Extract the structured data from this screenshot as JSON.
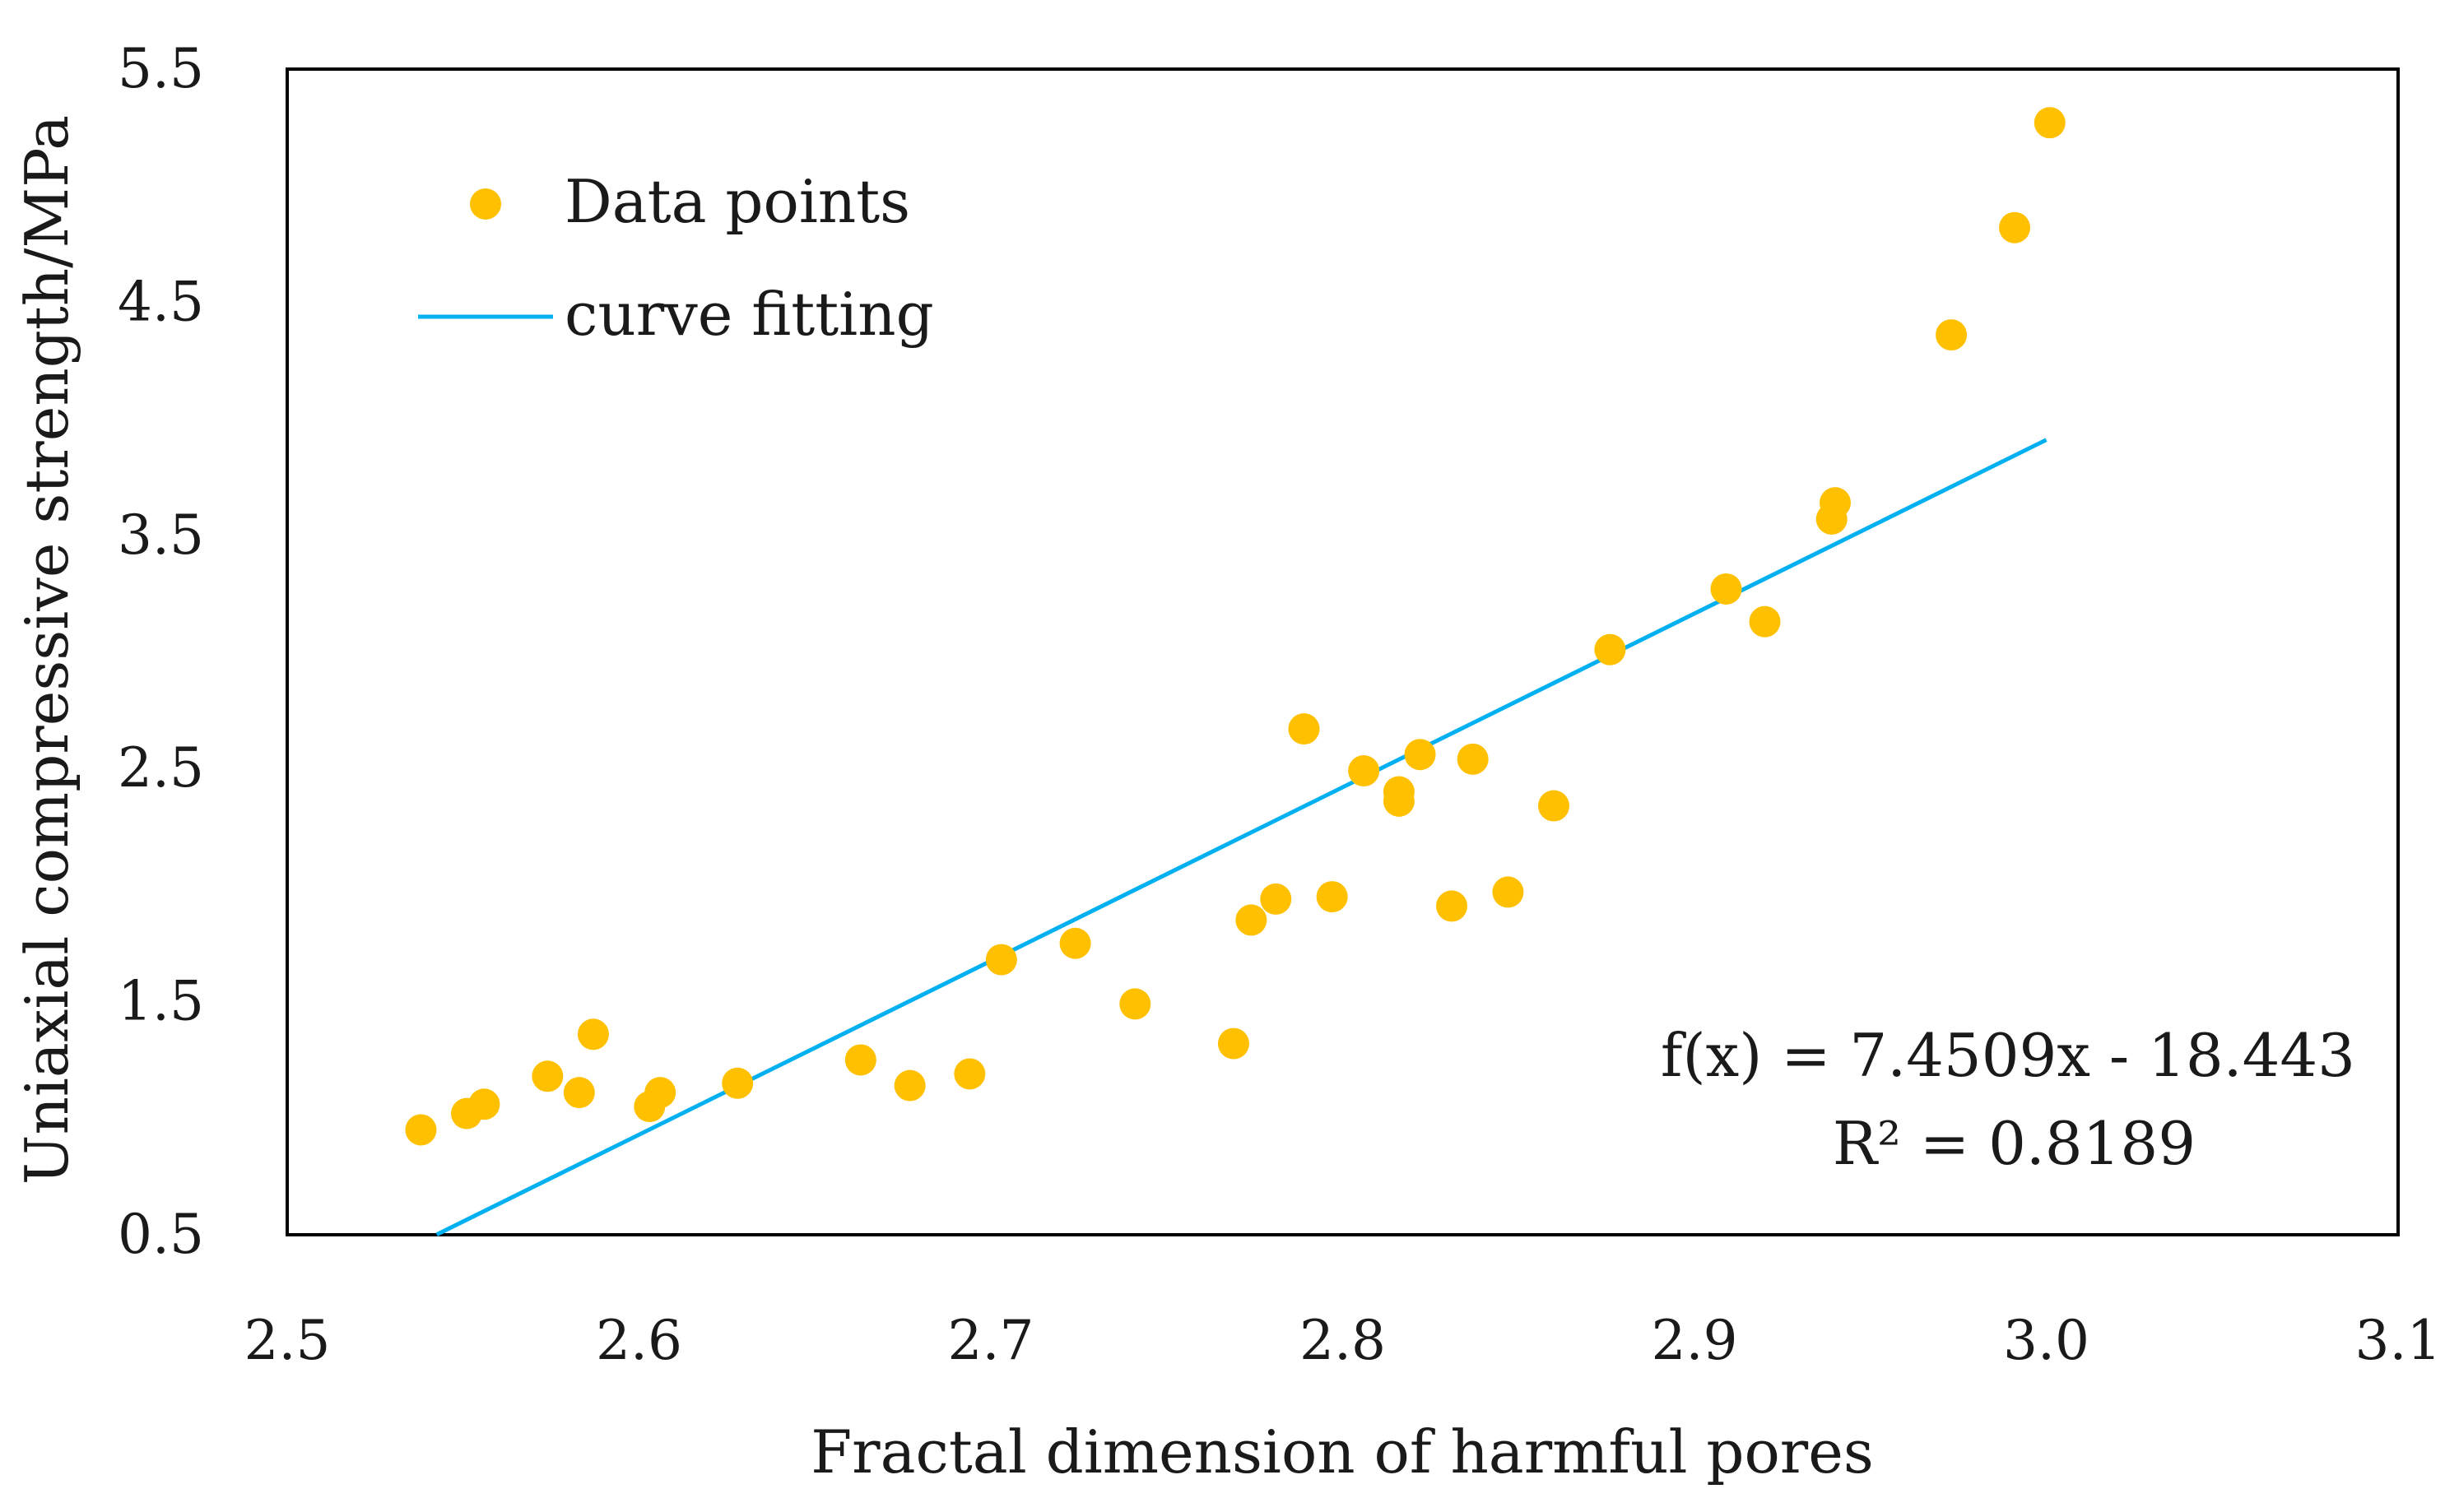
{
  "chart_data": {
    "type": "scatter",
    "xlabel": "Fractal dimension of harmful pores",
    "ylabel": "Uniaxial compressive strength/MPa",
    "xlim": [
      2.5,
      3.1
    ],
    "ylim": [
      0.5,
      5.5
    ],
    "x_ticks": [
      "2.5",
      "2.6",
      "2.7",
      "2.8",
      "2.9",
      "3.0",
      "3.1"
    ],
    "y_ticks": [
      "0.5",
      "1.5",
      "2.5",
      "3.5",
      "4.5",
      "5.5"
    ],
    "grid": false,
    "legend": {
      "position": "top-left",
      "entries": [
        {
          "label": "Data points",
          "kind": "marker",
          "color": "#FFC000"
        },
        {
          "label": "curve fitting",
          "kind": "line",
          "color": "#00B0F0"
        }
      ]
    },
    "series": [
      {
        "name": "Data points",
        "color": "#FFC000",
        "points": [
          [
            2.538,
            0.95
          ],
          [
            2.551,
            1.02
          ],
          [
            2.556,
            1.06
          ],
          [
            2.574,
            1.18
          ],
          [
            2.583,
            1.11
          ],
          [
            2.587,
            1.36
          ],
          [
            2.603,
            1.05
          ],
          [
            2.606,
            1.11
          ],
          [
            2.628,
            1.15
          ],
          [
            2.663,
            1.25
          ],
          [
            2.677,
            1.14
          ],
          [
            2.694,
            1.19
          ],
          [
            2.703,
            1.68
          ],
          [
            2.724,
            1.75
          ],
          [
            2.741,
            1.49
          ],
          [
            2.769,
            1.32
          ],
          [
            2.774,
            1.85
          ],
          [
            2.781,
            1.94
          ],
          [
            2.789,
            2.67
          ],
          [
            2.797,
            1.95
          ],
          [
            2.806,
            2.49
          ],
          [
            2.816,
            2.4
          ],
          [
            2.816,
            2.36
          ],
          [
            2.822,
            2.56
          ],
          [
            2.831,
            1.91
          ],
          [
            2.837,
            2.54
          ],
          [
            2.847,
            1.97
          ],
          [
            2.86,
            2.34
          ],
          [
            2.876,
            3.01
          ],
          [
            2.909,
            3.27
          ],
          [
            2.92,
            3.13
          ],
          [
            2.939,
            3.57
          ],
          [
            2.94,
            3.64
          ],
          [
            2.973,
            4.36
          ],
          [
            2.991,
            4.82
          ],
          [
            3.001,
            5.27
          ]
        ]
      },
      {
        "name": "curve fitting",
        "type": "line",
        "color": "#00B0F0",
        "slope": 7.4509,
        "intercept": -18.443,
        "x_range": [
          2.5425,
          3.0
        ]
      }
    ],
    "annotations": {
      "equation": "f(x) = 7.4509x - 18.443",
      "r_squared": "R² = 0.8189"
    }
  }
}
